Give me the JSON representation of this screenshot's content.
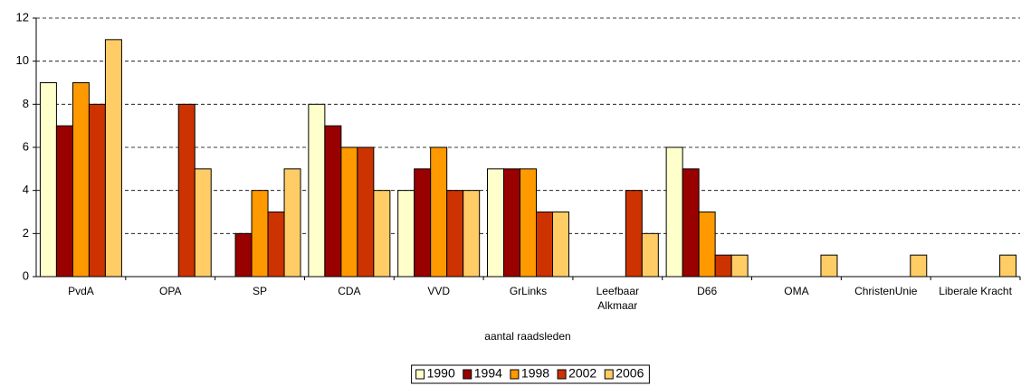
{
  "chart_data": {
    "type": "bar",
    "xlabel": "aantal raadsleden",
    "categories": [
      "PvdA",
      "OPA",
      "SP",
      "CDA",
      "VVD",
      "GrLinks",
      "Leefbaar Alkmaar",
      "D66",
      "OMA",
      "ChristenUnie",
      "Liberale Kracht"
    ],
    "series": [
      {
        "name": "1990",
        "color": "#ffffcc",
        "values": [
          9,
          0,
          0,
          8,
          4,
          5,
          0,
          6,
          0,
          0,
          0
        ]
      },
      {
        "name": "1994",
        "color": "#990000",
        "values": [
          7,
          0,
          2,
          7,
          5,
          5,
          0,
          5,
          0,
          0,
          0
        ]
      },
      {
        "name": "1998",
        "color": "#ff9900",
        "values": [
          9,
          0,
          4,
          6,
          6,
          5,
          0,
          3,
          0,
          0,
          0
        ]
      },
      {
        "name": "2002",
        "color": "#cc3300",
        "values": [
          8,
          8,
          3,
          6,
          4,
          3,
          4,
          1,
          0,
          0,
          0
        ]
      },
      {
        "name": "2006",
        "color": "#ffcc66",
        "values": [
          11,
          5,
          5,
          4,
          4,
          3,
          2,
          1,
          1,
          1,
          1
        ]
      }
    ],
    "ylim": [
      0,
      12
    ],
    "yticks": [
      0,
      2,
      4,
      6,
      8,
      10,
      12
    ],
    "grid": true,
    "legend": "bottom"
  }
}
